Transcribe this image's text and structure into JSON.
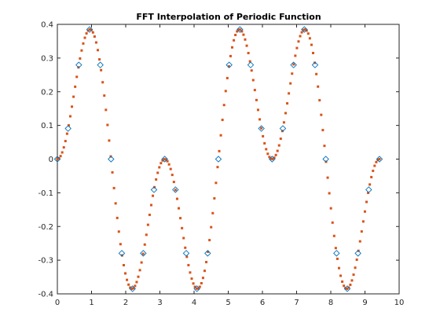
{
  "chart_data": {
    "type": "scatter",
    "title": "FFT Interpolation of Periodic Function",
    "xlabel": "",
    "ylabel": "",
    "xlim": [
      0,
      10
    ],
    "ylim": [
      -0.4,
      0.4
    ],
    "xticks": [
      0,
      1,
      2,
      3,
      4,
      5,
      6,
      7,
      8,
      9,
      10
    ],
    "yticks": [
      -0.4,
      -0.3,
      -0.2,
      -0.1,
      0,
      0.1,
      0.2,
      0.3,
      0.4
    ],
    "grid": false,
    "legend": "none",
    "series": [
      {
        "marker": "diamond-open",
        "color": "#0072BD",
        "function": "sin(x)^2 * cos(x)",
        "x_range": [
          0,
          9.42478
        ],
        "n_points": 31
      },
      {
        "marker": "dot",
        "color": "#D95319",
        "function": "sin(x)^2 * cos(x)",
        "x_range": [
          0,
          9.42478
        ],
        "n_points": 200
      }
    ]
  }
}
